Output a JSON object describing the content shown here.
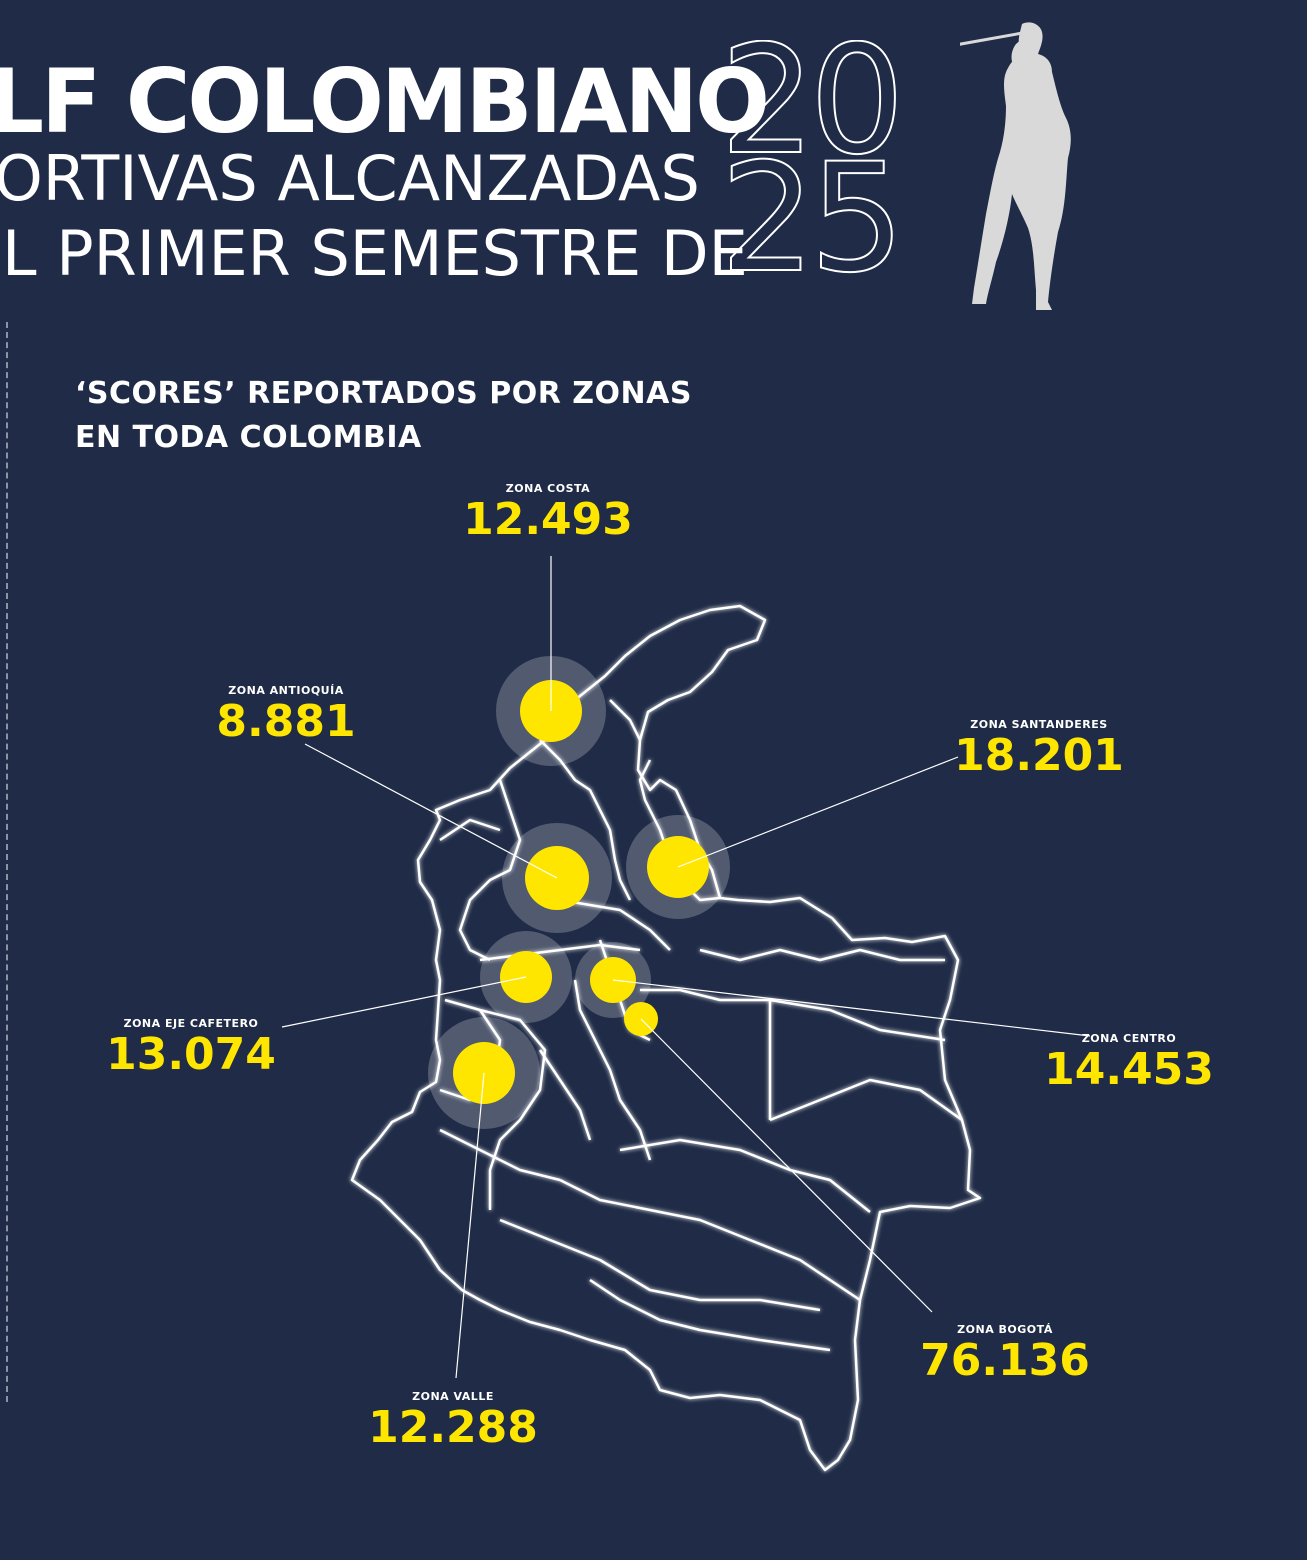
{
  "header": {
    "title": "LF COLOMBIANO",
    "subtitle_line1": "ORTIVAS ALCANZADAS",
    "subtitle_line2": "L PRIMER SEMESTRE DE",
    "year_top": "20",
    "year_bottom": "25"
  },
  "section": {
    "title_line1": "‘SCORES’ REPORTADOS POR ZONAS",
    "title_line2": "EN TODA COLOMBIA"
  },
  "colors": {
    "background": "#202c47",
    "accent": "#ffe600",
    "text": "#ffffff",
    "map_outline": "#ffffff",
    "golfer": "#d9d9d9"
  },
  "icons": {
    "golfer": "golfer-silhouette-icon",
    "map": "colombia-map"
  },
  "zones": [
    {
      "id": "costa",
      "label": "ZONA COSTA",
      "value": "12.493"
    },
    {
      "id": "antioquia",
      "label": "ZONA ANTIOQUÍA",
      "value": "8.881"
    },
    {
      "id": "santanderes",
      "label": "ZONA SANTANDERES",
      "value": "18.201"
    },
    {
      "id": "eje",
      "label": "ZONA EJE CAFETERO",
      "value": "13.074"
    },
    {
      "id": "centro",
      "label": "ZONA CENTRO",
      "value": "14.453"
    },
    {
      "id": "bogota",
      "label": "ZONA BOGOTÁ",
      "value": "76.136"
    },
    {
      "id": "valle",
      "label": "ZONA VALLE",
      "value": "12.288"
    }
  ]
}
